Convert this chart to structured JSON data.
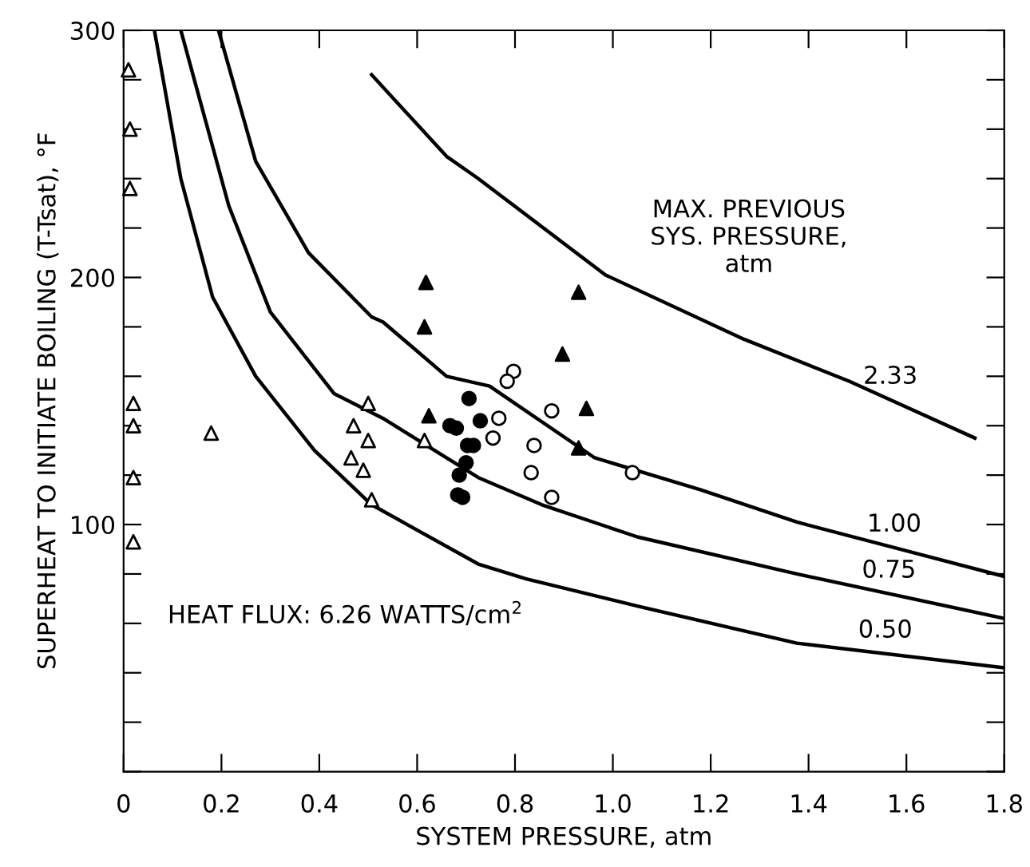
{
  "chart_data": {
    "type": "line",
    "xlabel": "SYSTEM PRESSURE, atm",
    "ylabel": "SUPERHEAT TO INITIATE BOILING (T-Tsat), °F",
    "annotations": [
      "MAX. PREVIOUS\nSYS. PRESSURE,\natm",
      "HEAT FLUX: 6.26 WATTS/cm$^{2}$"
    ],
    "xlim": [
      0,
      1.8
    ],
    "ylim": [
      0,
      300
    ],
    "xticks": [
      0,
      0.2,
      0.4,
      0.6,
      0.8,
      {
        "value": 1.0,
        "label": "1.0"
      },
      1.2,
      1.4,
      1.6,
      1.8
    ],
    "yticks": [
      {
        "value": 0,
        "label": null
      },
      {
        "value": 20,
        "label": null
      },
      {
        "value": 40,
        "label": null
      },
      {
        "value": 60,
        "label": null
      },
      {
        "value": 80,
        "label": null
      },
      100,
      {
        "value": 120,
        "label": null
      },
      {
        "value": 140,
        "label": null
      },
      {
        "value": 160,
        "label": null
      },
      {
        "value": 180,
        "label": null
      },
      200,
      {
        "value": 220,
        "label": null
      },
      {
        "value": 240,
        "label": null
      },
      {
        "value": 260,
        "label": null
      },
      {
        "value": 280,
        "label": null
      },
      300
    ],
    "grid": false,
    "legend": false,
    "series": [
      {
        "name": "2.33",
        "color": "#000000",
        "x": [
          0.507,
          0.66,
          0.725,
          0.985,
          1.268,
          1.483,
          1.74
        ],
        "values": [
          282,
          249,
          240,
          201,
          175,
          158,
          135
        ]
      },
      {
        "name": "1.00",
        "color": "#000000",
        "x": [
          0.194,
          0.27,
          0.378,
          0.507,
          0.53,
          0.66,
          0.748,
          0.963,
          1.18,
          1.376,
          1.626,
          1.8
        ],
        "values": [
          300,
          247,
          210,
          184,
          182,
          160,
          156,
          127,
          114,
          101,
          88,
          79
        ]
      },
      {
        "name": "0.75",
        "color": "#000000",
        "x": [
          0.117,
          0.215,
          0.3,
          0.43,
          0.53,
          0.725,
          0.855,
          1.05,
          1.376,
          1.8
        ],
        "values": [
          300,
          229,
          186,
          153,
          143,
          119,
          108,
          95,
          80,
          62
        ]
      },
      {
        "name": "0.50",
        "color": "#000000",
        "x": [
          0.063,
          0.117,
          0.182,
          0.27,
          0.39,
          0.507,
          0.725,
          0.823,
          1.05,
          1.376,
          1.8
        ],
        "values": [
          300,
          240,
          192,
          160,
          130,
          108,
          84,
          78,
          67,
          52,
          42
        ]
      },
      {
        "type": "scatter",
        "marker": "triangle",
        "color": "#ffffff",
        "x": [
          0.01,
          0.013,
          0.013,
          0.02,
          0.02,
          0.02,
          0.02,
          0.179,
          0.5,
          0.47,
          0.5,
          0.465,
          0.49,
          0.507,
          0.615
        ],
        "values": [
          284,
          260,
          236,
          149,
          140,
          119,
          93,
          137,
          149,
          140,
          134,
          127,
          122,
          110,
          134
        ]
      },
      {
        "type": "scatter",
        "marker": "triangle",
        "color": "#000000",
        "x": [
          0.618,
          0.615,
          0.624,
          0.93,
          0.897,
          0.946,
          0.93
        ],
        "values": [
          198,
          180,
          144,
          194,
          169,
          147,
          131
        ]
      },
      {
        "type": "scatter",
        "marker": "circle",
        "color": "#000000",
        "x": [
          0.706,
          0.729,
          0.667,
          0.68,
          0.703,
          0.715,
          0.7,
          0.686,
          0.683,
          0.693
        ],
        "values": [
          151,
          142,
          140,
          139,
          132,
          132,
          125,
          120,
          112,
          111
        ]
      },
      {
        "type": "scatter",
        "marker": "circle",
        "color": "#ffffff",
        "x": [
          0.797,
          0.784,
          0.767,
          0.755,
          0.875,
          0.839,
          0.833,
          0.875,
          1.04
        ],
        "values": [
          162,
          158,
          143,
          135,
          146,
          132,
          121,
          111,
          121
        ]
      }
    ]
  }
}
